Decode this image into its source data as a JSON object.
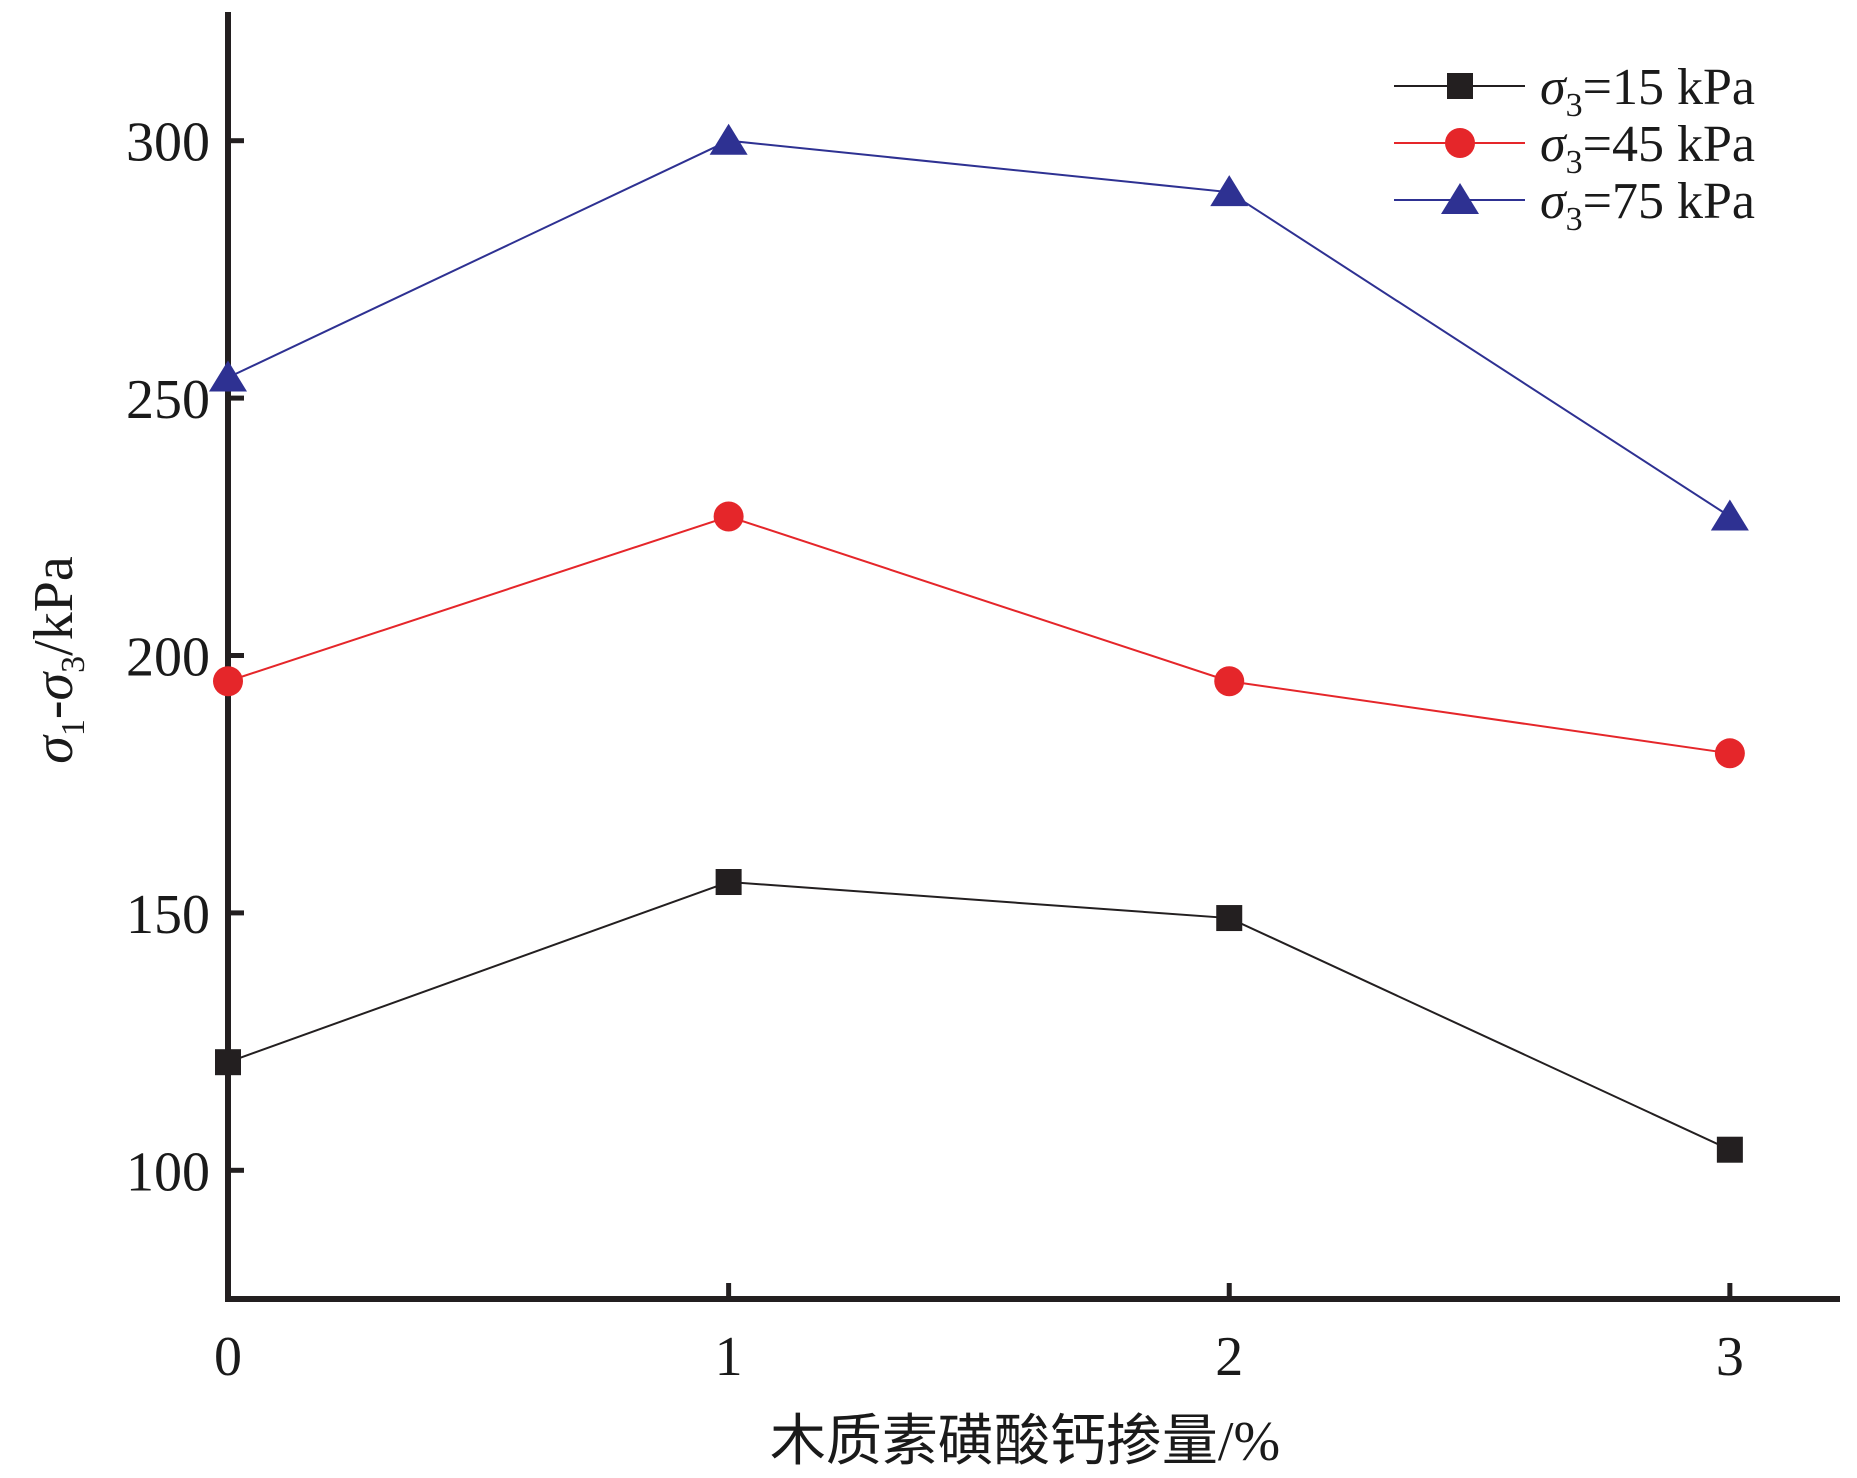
{
  "chart_data": {
    "type": "line",
    "xlabel": "木质素磺酸钙掺量/%",
    "ylabel": {
      "sigma1": "σ",
      "sub1": "1",
      "dash": "-",
      "sigma3": "σ",
      "sub3": "3",
      "unit": "/kPa"
    },
    "x": [
      0,
      1,
      2,
      3
    ],
    "xticks": [
      "0",
      "1",
      "2",
      "3"
    ],
    "xlim": [
      0,
      3.22
    ],
    "ylim": [
      75,
      325
    ],
    "yticks": [
      "100",
      "150",
      "200",
      "250",
      "300"
    ],
    "grid": false,
    "legend_position": "top-right",
    "series": [
      {
        "legend": {
          "sigma": "σ",
          "sub": "3",
          "text": "=15 kPa"
        },
        "color": "#231f20",
        "marker": "square",
        "values": [
          121,
          156,
          149,
          104
        ]
      },
      {
        "legend": {
          "sigma": "σ",
          "sub": "3",
          "text": "=45 kPa"
        },
        "color": "#e5262a",
        "marker": "circle",
        "values": [
          195,
          227,
          195,
          181
        ]
      },
      {
        "legend": {
          "sigma": "σ",
          "sub": "3",
          "text": "=75 kPa"
        },
        "color": "#2e3192",
        "marker": "triangle",
        "values": [
          254,
          300,
          290,
          227
        ]
      }
    ]
  }
}
